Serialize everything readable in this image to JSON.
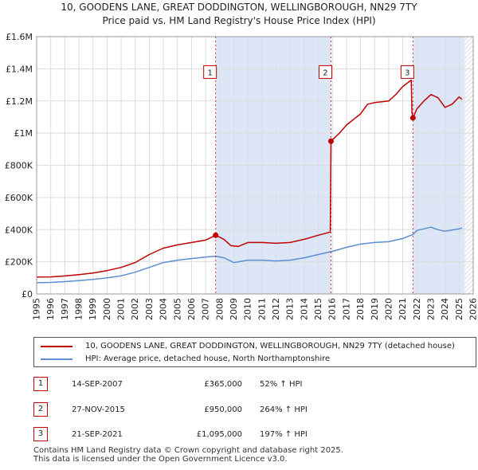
{
  "header": {
    "title_line1": "10, GOODENS LANE, GREAT DODDINGTON, WELLINGBOROUGH, NN29 7TY",
    "title_line2": "Price paid vs. HM Land Registry's House Price Index (HPI)"
  },
  "colors": {
    "price_line": "#c00000",
    "hpi_line": "#5b8fd0",
    "shade": "#dde6f7",
    "grid": "#dddddd",
    "marker": "#c00000"
  },
  "chart_data": {
    "type": "line",
    "title": "Price paid vs. HM Land Registry's House Price Index (HPI)",
    "xlabel": "",
    "ylabel": "",
    "xlim": [
      1995,
      2026
    ],
    "ylim": [
      0,
      1600000
    ],
    "x_ticks": [
      1995,
      1996,
      1997,
      1998,
      1999,
      2000,
      2001,
      2002,
      2003,
      2004,
      2005,
      2006,
      2007,
      2008,
      2009,
      2010,
      2011,
      2012,
      2013,
      2014,
      2015,
      2016,
      2017,
      2018,
      2019,
      2020,
      2021,
      2022,
      2023,
      2024,
      2025,
      2026
    ],
    "y_ticks": [
      {
        "value": 0,
        "label": "£0"
      },
      {
        "value": 200000,
        "label": "£200K"
      },
      {
        "value": 400000,
        "label": "£400K"
      },
      {
        "value": 600000,
        "label": "£600K"
      },
      {
        "value": 800000,
        "label": "£800K"
      },
      {
        "value": 1000000,
        "label": "£1M"
      },
      {
        "value": 1200000,
        "label": "£1.2M"
      },
      {
        "value": 1400000,
        "label": "£1.4M"
      },
      {
        "value": 1600000,
        "label": "£1.6M"
      }
    ],
    "grid": true,
    "shaded_regions": [
      [
        2007.71,
        2015.9
      ],
      [
        2021.72,
        2025.4
      ]
    ],
    "hatched_region": [
      2025.4,
      2026
    ],
    "series": [
      {
        "name": "10, GOODENS LANE, GREAT DODDINGTON, WELLINGBOROUGH, NN29 7TY (detached house)",
        "color": "#c00000",
        "points": [
          [
            1995,
            105000
          ],
          [
            1996,
            106000
          ],
          [
            1997,
            112000
          ],
          [
            1998,
            120000
          ],
          [
            1999,
            130000
          ],
          [
            2000,
            145000
          ],
          [
            2001,
            165000
          ],
          [
            2002,
            195000
          ],
          [
            2003,
            245000
          ],
          [
            2004,
            285000
          ],
          [
            2005,
            305000
          ],
          [
            2006,
            320000
          ],
          [
            2007,
            335000
          ],
          [
            2007.71,
            365000
          ],
          [
            2008.3,
            340000
          ],
          [
            2008.8,
            300000
          ],
          [
            2009.3,
            295000
          ],
          [
            2010,
            320000
          ],
          [
            2011,
            320000
          ],
          [
            2012,
            315000
          ],
          [
            2013,
            320000
          ],
          [
            2014,
            340000
          ],
          [
            2015,
            365000
          ],
          [
            2015.85,
            385000
          ],
          [
            2015.9,
            950000
          ],
          [
            2016.5,
            1000000
          ],
          [
            2017,
            1050000
          ],
          [
            2018,
            1120000
          ],
          [
            2018.5,
            1180000
          ],
          [
            2019,
            1190000
          ],
          [
            2020,
            1200000
          ],
          [
            2020.5,
            1240000
          ],
          [
            2021,
            1290000
          ],
          [
            2021.6,
            1330000
          ],
          [
            2021.65,
            1130000
          ],
          [
            2021.72,
            1095000
          ],
          [
            2022,
            1150000
          ],
          [
            2022.5,
            1200000
          ],
          [
            2023,
            1240000
          ],
          [
            2023.5,
            1220000
          ],
          [
            2024,
            1160000
          ],
          [
            2024.5,
            1180000
          ],
          [
            2025,
            1225000
          ],
          [
            2025.2,
            1210000
          ]
        ]
      },
      {
        "name": "HPI: Average price, detached house, North Northamptonshire",
        "color": "#5b8fd0",
        "points": [
          [
            1995,
            70000
          ],
          [
            1996,
            72000
          ],
          [
            1997,
            77000
          ],
          [
            1998,
            83000
          ],
          [
            1999,
            90000
          ],
          [
            2000,
            100000
          ],
          [
            2001,
            113000
          ],
          [
            2002,
            135000
          ],
          [
            2003,
            165000
          ],
          [
            2004,
            195000
          ],
          [
            2005,
            210000
          ],
          [
            2006,
            220000
          ],
          [
            2007,
            230000
          ],
          [
            2007.71,
            235000
          ],
          [
            2008.3,
            225000
          ],
          [
            2009,
            195000
          ],
          [
            2010,
            210000
          ],
          [
            2011,
            210000
          ],
          [
            2012,
            205000
          ],
          [
            2013,
            210000
          ],
          [
            2014,
            225000
          ],
          [
            2015,
            245000
          ],
          [
            2016,
            265000
          ],
          [
            2017,
            290000
          ],
          [
            2018,
            310000
          ],
          [
            2019,
            320000
          ],
          [
            2020,
            325000
          ],
          [
            2021,
            345000
          ],
          [
            2021.72,
            370000
          ],
          [
            2022,
            395000
          ],
          [
            2023,
            415000
          ],
          [
            2023.5,
            400000
          ],
          [
            2024,
            390000
          ],
          [
            2025,
            405000
          ],
          [
            2025.2,
            410000
          ]
        ]
      }
    ],
    "sales": [
      {
        "id": "1",
        "x": 2007.71,
        "value": 365000,
        "date": "14-SEP-2007",
        "price": "£365,000",
        "hpi": "52% ↑ HPI"
      },
      {
        "id": "2",
        "x": 2015.9,
        "value": 950000,
        "date": "27-NOV-2015",
        "price": "£950,000",
        "hpi": "264% ↑ HPI"
      },
      {
        "id": "3",
        "x": 2021.72,
        "value": 1095000,
        "date": "21-SEP-2021",
        "price": "£1,095,000",
        "hpi": "197% ↑ HPI"
      }
    ],
    "sale_label_value": 1380000
  },
  "legend": {
    "price_label": "10, GOODENS LANE, GREAT DODDINGTON, WELLINGBOROUGH, NN29 7TY (detached house)",
    "hpi_label": "HPI: Average price, detached house, North Northamptonshire"
  },
  "footer": {
    "line1": "Contains HM Land Registry data © Crown copyright and database right 2025.",
    "line2": "This data is licensed under the Open Government Licence v3.0."
  }
}
